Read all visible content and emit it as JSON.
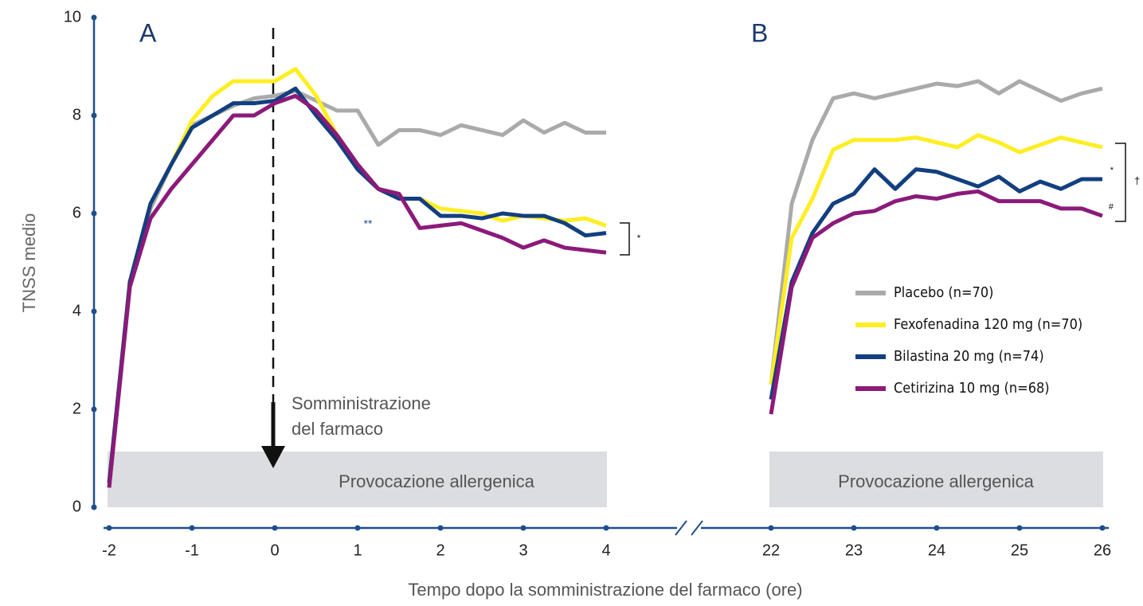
{
  "chart_data": [
    {
      "type": "line",
      "title": "A",
      "y_label": "TNSS medio",
      "x_label": "Tempo dopo la somministrazione del farmaco (ore)",
      "xlim": [
        -2,
        4
      ],
      "xticks": [
        -2,
        -1,
        0,
        1,
        2,
        3,
        4
      ],
      "ylim": [
        0,
        10
      ],
      "yticks": [
        0,
        2,
        4,
        6,
        8,
        10
      ],
      "annotations": [
        "Somministrazione",
        "del farmaco",
        "Provocazione allergenica",
        "**",
        "*"
      ],
      "x": [
        -2,
        -1.75,
        -1.5,
        -1.25,
        -1,
        -0.75,
        -0.5,
        -0.25,
        0,
        0.25,
        0.5,
        0.75,
        1,
        1.25,
        1.5,
        1.75,
        2,
        2.25,
        2.5,
        2.75,
        3,
        3.25,
        3.5,
        3.75,
        4
      ],
      "series": [
        {
          "name": "Placebo (n=70)",
          "color": "#aaaaaa",
          "values": [
            0.5,
            4.5,
            6.1,
            7.0,
            7.8,
            8.0,
            8.2,
            8.35,
            8.4,
            8.5,
            8.3,
            8.1,
            8.1,
            7.4,
            7.7,
            7.7,
            7.6,
            7.8,
            7.7,
            7.6,
            7.9,
            7.65,
            7.85,
            7.65,
            7.65
          ]
        },
        {
          "name": "Fexofenadina 120 mg (n=70)",
          "color": "#ffee22",
          "values": [
            0.5,
            4.6,
            6.2,
            7.0,
            7.9,
            8.4,
            8.7,
            8.7,
            8.7,
            8.95,
            8.4,
            7.6,
            7.0,
            6.5,
            6.3,
            6.3,
            6.1,
            6.05,
            6.0,
            5.85,
            5.95,
            5.9,
            5.85,
            5.9,
            5.75
          ]
        },
        {
          "name": "Bilastina 20 mg (n=74)",
          "color": "#123f7f",
          "values": [
            0.5,
            4.6,
            6.2,
            7.0,
            7.75,
            8.0,
            8.25,
            8.25,
            8.3,
            8.55,
            8.0,
            7.5,
            6.9,
            6.5,
            6.3,
            6.3,
            5.95,
            5.95,
            5.9,
            6.0,
            5.95,
            5.95,
            5.8,
            5.55,
            5.6
          ]
        },
        {
          "name": "Cetirizina 10 mg (n=68)",
          "color": "#8b1a7a",
          "values": [
            0.4,
            4.5,
            5.9,
            6.5,
            7.0,
            7.5,
            8.0,
            8.0,
            8.25,
            8.4,
            8.1,
            7.6,
            7.0,
            6.5,
            6.4,
            5.7,
            5.75,
            5.8,
            5.65,
            5.5,
            5.3,
            5.45,
            5.3,
            5.25,
            5.2
          ]
        }
      ]
    },
    {
      "type": "line",
      "title": "B",
      "xlim": [
        22,
        26
      ],
      "xticks": [
        22,
        23,
        24,
        25,
        26
      ],
      "ylim": [
        0,
        10
      ],
      "annotations": [
        "Provocazione allergenica",
        "*",
        "#",
        "†"
      ],
      "x": [
        22,
        22.25,
        22.5,
        22.75,
        23,
        23.25,
        23.5,
        23.75,
        24,
        24.25,
        24.5,
        24.75,
        25,
        25.25,
        25.5,
        25.75,
        26
      ],
      "series": [
        {
          "name": "Placebo (n=70)",
          "color": "#aaaaaa",
          "values": [
            2.5,
            6.2,
            7.5,
            8.35,
            8.45,
            8.35,
            8.45,
            8.55,
            8.65,
            8.6,
            8.7,
            8.45,
            8.7,
            8.5,
            8.3,
            8.45,
            8.55
          ]
        },
        {
          "name": "Fexofenadina 120 mg (n=70)",
          "color": "#ffee22",
          "values": [
            2.5,
            5.5,
            6.3,
            7.3,
            7.5,
            7.5,
            7.5,
            7.55,
            7.45,
            7.35,
            7.6,
            7.45,
            7.25,
            7.4,
            7.55,
            7.45,
            7.35
          ]
        },
        {
          "name": "Bilastina 20 mg (n=74)",
          "color": "#123f7f",
          "values": [
            2.2,
            4.6,
            5.6,
            6.2,
            6.4,
            6.9,
            6.5,
            6.9,
            6.85,
            6.7,
            6.55,
            6.75,
            6.45,
            6.65,
            6.5,
            6.7,
            6.7
          ]
        },
        {
          "name": "Cetirizina 10 mg (n=68)",
          "color": "#8b1a7a",
          "values": [
            1.9,
            4.5,
            5.5,
            5.8,
            6.0,
            6.05,
            6.25,
            6.35,
            6.3,
            6.4,
            6.45,
            6.25,
            6.25,
            6.25,
            6.1,
            6.1,
            5.95
          ]
        }
      ],
      "legend": "right"
    }
  ]
}
